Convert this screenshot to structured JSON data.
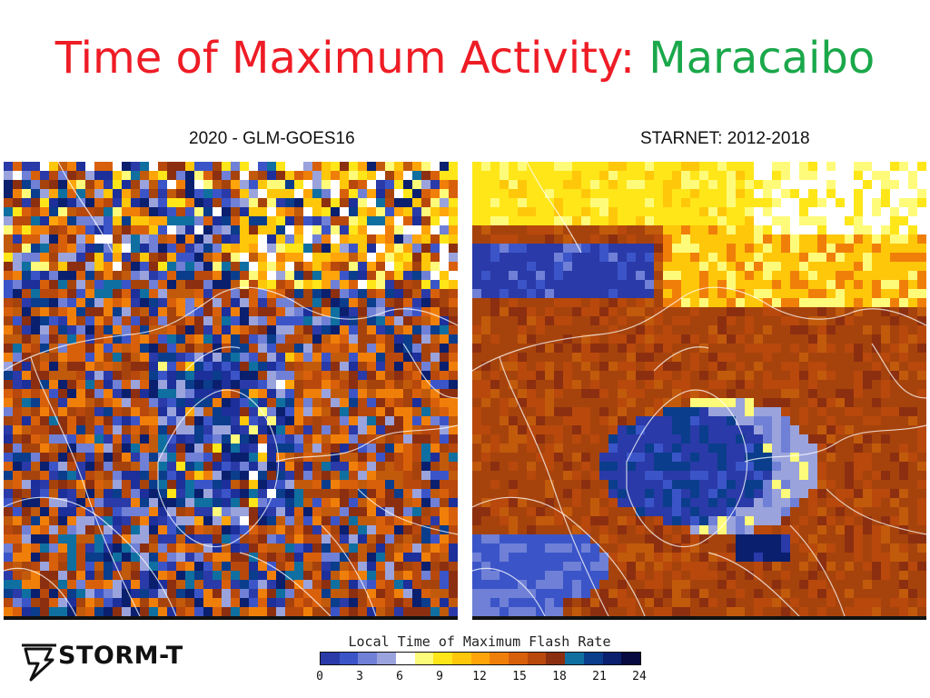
{
  "title": {
    "part1": "Time of Maximum Activity:",
    "part2": "Maracaibo"
  },
  "panels": [
    {
      "label": "2020 - GLM-GOES16"
    },
    {
      "label": "STARNET: 2012-2018"
    }
  ],
  "logo": {
    "text": "STORM-T"
  },
  "legend": {
    "title": "Local Time of Maximum Flash Rate",
    "ticks": [
      "0",
      "3",
      "6",
      "9",
      "12",
      "15",
      "18",
      "21",
      "24"
    ],
    "colors": [
      "#2a3aa8",
      "#3b55c8",
      "#6f80d6",
      "#9aa3dc",
      "#ffffff",
      "#fffb7a",
      "#ffe619",
      "#ffc70a",
      "#ffa50a",
      "#f07f0a",
      "#d9600a",
      "#b8480c",
      "#8c2f10",
      "#0f6fa0",
      "#0a3d8c",
      "#0a1f6e",
      "#070a40"
    ]
  },
  "colors": {
    "title_red": "#ee1c25",
    "title_green": "#1aa84a"
  },
  "maps": [
    {
      "name": "glm-goes16-map",
      "dominant": "mixed blue and orange mosaic"
    },
    {
      "name": "starnet-map",
      "dominant": "brown-orange with blue lake region"
    }
  ]
}
